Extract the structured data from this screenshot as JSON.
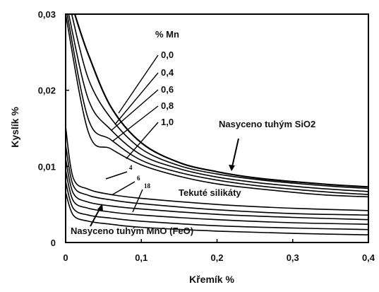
{
  "chart_data": {
    "type": "line",
    "xlabel": "Křemík %",
    "ylabel": "Kyslík %",
    "xlim": [
      0,
      0.4
    ],
    "ylim": [
      0,
      0.03
    ],
    "x_ticks": [
      "0",
      "0,1",
      "0,2",
      "0,3",
      "0,4"
    ],
    "y_ticks": [
      "0",
      "0,01",
      "0,02",
      "0,03"
    ],
    "grid": false,
    "legend_title": "% Mn",
    "legend_entries": [
      "0,0",
      "0,4",
      "0,6",
      "0,8",
      "1,0"
    ],
    "region_labels": {
      "silica": "Nasyceno tuhým SiO2",
      "liquid": "Tekuté silikáty",
      "mno": "Nasyceno tuhým MnO (FeO)"
    },
    "lower_curve_labels": [
      "4",
      "6",
      "18"
    ],
    "upper_series": [
      {
        "name": "0,0",
        "points": [
          [
            0.012,
            0.03
          ],
          [
            0.03,
            0.0247
          ],
          [
            0.06,
            0.0178
          ],
          [
            0.1,
            0.0131
          ],
          [
            0.15,
            0.0105
          ],
          [
            0.2,
            0.0093
          ],
          [
            0.25,
            0.0085
          ],
          [
            0.3,
            0.008
          ],
          [
            0.35,
            0.0076
          ],
          [
            0.4,
            0.0073
          ]
        ]
      },
      {
        "name": "0,4",
        "points": [
          [
            0.008,
            0.03
          ],
          [
            0.03,
            0.0215
          ],
          [
            0.06,
            0.0163
          ],
          [
            0.1,
            0.0123
          ],
          [
            0.15,
            0.0101
          ],
          [
            0.2,
            0.009
          ],
          [
            0.25,
            0.0083
          ],
          [
            0.3,
            0.0078
          ],
          [
            0.35,
            0.0074
          ],
          [
            0.4,
            0.0071
          ]
        ]
      },
      {
        "name": "0,6",
        "points": [
          [
            0.004,
            0.03
          ],
          [
            0.03,
            0.0188
          ],
          [
            0.06,
            0.0148
          ],
          [
            0.1,
            0.0115
          ],
          [
            0.15,
            0.0097
          ],
          [
            0.2,
            0.0086
          ],
          [
            0.25,
            0.0079
          ],
          [
            0.3,
            0.0074
          ],
          [
            0.35,
            0.007
          ],
          [
            0.4,
            0.0067
          ]
        ]
      },
      {
        "name": "0,8",
        "points": [
          [
            0.002,
            0.03
          ],
          [
            0.03,
            0.0162
          ],
          [
            0.06,
            0.0135
          ],
          [
            0.1,
            0.0108
          ],
          [
            0.15,
            0.0092
          ],
          [
            0.2,
            0.0082
          ],
          [
            0.25,
            0.0075
          ],
          [
            0.3,
            0.007
          ],
          [
            0.35,
            0.0066
          ],
          [
            0.4,
            0.0063
          ]
        ]
      },
      {
        "name": "1,0",
        "points": [
          [
            0.0,
            0.03
          ],
          [
            0.03,
            0.0145
          ],
          [
            0.06,
            0.0123
          ],
          [
            0.1,
            0.0102
          ],
          [
            0.15,
            0.0087
          ],
          [
            0.2,
            0.0077
          ],
          [
            0.25,
            0.0071
          ],
          [
            0.3,
            0.0066
          ],
          [
            0.35,
            0.0062
          ],
          [
            0.4,
            0.006
          ]
        ]
      }
    ],
    "lower_series": [
      {
        "points": [
          [
            0.0,
            0.0152
          ],
          [
            0.01,
            0.0085
          ],
          [
            0.03,
            0.007
          ],
          [
            0.06,
            0.0063
          ],
          [
            0.1,
            0.0058
          ],
          [
            0.2,
            0.005
          ],
          [
            0.3,
            0.0045
          ],
          [
            0.4,
            0.0042
          ]
        ]
      },
      {
        "points": [
          [
            0.0,
            0.0128
          ],
          [
            0.01,
            0.0075
          ],
          [
            0.03,
            0.0062
          ],
          [
            0.06,
            0.0056
          ],
          [
            0.1,
            0.0051
          ],
          [
            0.2,
            0.0043
          ],
          [
            0.3,
            0.0038
          ],
          [
            0.4,
            0.0036
          ]
        ]
      },
      {
        "points": [
          [
            0.0,
            0.011
          ],
          [
            0.01,
            0.0065
          ],
          [
            0.03,
            0.0053
          ],
          [
            0.06,
            0.0048
          ],
          [
            0.1,
            0.0044
          ],
          [
            0.2,
            0.0037
          ],
          [
            0.3,
            0.0033
          ],
          [
            0.4,
            0.003
          ]
        ]
      },
      {
        "points": [
          [
            0.0,
            0.0095
          ],
          [
            0.01,
            0.0055
          ],
          [
            0.03,
            0.0045
          ],
          [
            0.06,
            0.004
          ],
          [
            0.1,
            0.0036
          ],
          [
            0.2,
            0.003
          ],
          [
            0.3,
            0.0026
          ],
          [
            0.4,
            0.0024
          ]
        ]
      },
      {
        "points": [
          [
            0.0,
            0.008
          ],
          [
            0.01,
            0.0045
          ],
          [
            0.03,
            0.0036
          ],
          [
            0.06,
            0.0032
          ],
          [
            0.1,
            0.0028
          ],
          [
            0.2,
            0.0022
          ],
          [
            0.3,
            0.0019
          ],
          [
            0.4,
            0.0017
          ]
        ]
      },
      {
        "points": [
          [
            0.0,
            0.0066
          ],
          [
            0.01,
            0.0036
          ],
          [
            0.03,
            0.0028
          ],
          [
            0.06,
            0.0024
          ],
          [
            0.1,
            0.002
          ],
          [
            0.2,
            0.0015
          ],
          [
            0.3,
            0.0012
          ],
          [
            0.4,
            0.001
          ]
        ]
      }
    ]
  }
}
